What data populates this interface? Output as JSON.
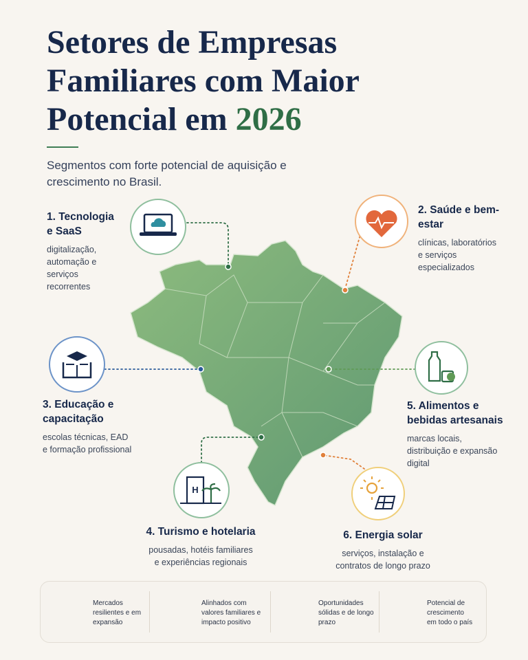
{
  "header": {
    "title": "Setores de Empresas Familiares com Maior Potencial em",
    "title_highlight": "2026",
    "subtitle": "Segmentos com forte potencial de aquisição e crescimento no Brasil."
  },
  "sectors": [
    {
      "title": "1. Tecnologia e SaaS",
      "description": "digitalização, automação e serviços recorrentes"
    },
    {
      "title": "2. Saúde e bem-estar",
      "description": "clínicas, laboratórios e serviços especializados"
    },
    {
      "title": "3. Educação e capacitação",
      "description": "escolas técnicas, EAD e formação profissional"
    },
    {
      "title": "4. Turismo e hotelaria",
      "description": "pousadas, hotéis familiares e experiências regionais"
    },
    {
      "title": "5. Alimentos e bebidas artesanais",
      "description": "marcas locais, distribuição e expansão digital"
    },
    {
      "title": "6. Energia solar",
      "description": "serviços, instalação e contratos de longo prazo"
    }
  ],
  "footer": [
    "Mercados resilientes e em expansão",
    "Alinhados com valores familiares e impacto positivo",
    "Oportunidades sólidas e de longo prazo",
    "Potencial de crescimento em todo o país"
  ]
}
